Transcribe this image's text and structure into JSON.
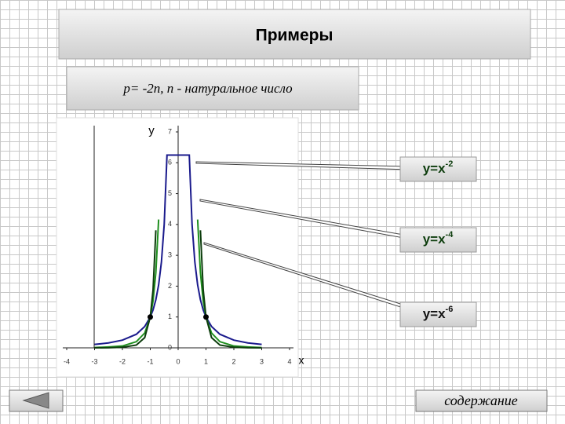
{
  "header": {
    "title": "Примеры"
  },
  "subtitle": "p= -2n, n - натуральное число",
  "chart_data": {
    "type": "line",
    "xlabel": "x",
    "ylabel": "y",
    "xlim": [
      -4,
      4
    ],
    "ylim": [
      0,
      7
    ],
    "xticks": [
      -4,
      -3,
      -2,
      -1,
      0,
      1,
      2,
      3,
      4
    ],
    "yticks": [
      0,
      1,
      2,
      3,
      4,
      5,
      6,
      7
    ],
    "x": [
      -3,
      -2.5,
      -2,
      -1.5,
      -1.2,
      -1,
      -0.9,
      -0.8,
      -0.7,
      -0.6,
      -0.5,
      -0.4,
      0.4,
      0.5,
      0.6,
      0.7,
      0.8,
      0.9,
      1,
      1.2,
      1.5,
      2,
      2.5,
      3
    ],
    "series": [
      {
        "label": {
          "base": "y=x",
          "sup": "-2"
        },
        "color": "#1a1a8c",
        "values": [
          0.11,
          0.16,
          0.25,
          0.44,
          0.69,
          1,
          1.23,
          1.56,
          2.04,
          2.78,
          4,
          6.25,
          6.25,
          4,
          2.78,
          2.04,
          1.56,
          1.23,
          1,
          0.69,
          0.44,
          0.25,
          0.16,
          0.11
        ]
      },
      {
        "label": {
          "base": "y=x",
          "sup": "-4"
        },
        "color": "#1f8f1f",
        "values": [
          0.01,
          0.03,
          0.06,
          0.2,
          0.48,
          1,
          1.52,
          2.44,
          4.16,
          null,
          null,
          null,
          null,
          null,
          null,
          4.16,
          2.44,
          1.52,
          1,
          0.48,
          0.2,
          0.06,
          0.03,
          0.01
        ]
      },
      {
        "label": {
          "base": "y=x",
          "sup": "-6"
        },
        "color": "#0d3d0d",
        "values": [
          0,
          0.004,
          0.02,
          0.09,
          0.33,
          1,
          1.88,
          3.81,
          null,
          null,
          null,
          null,
          null,
          null,
          null,
          null,
          3.81,
          1.88,
          1,
          0.33,
          0.09,
          0.02,
          0.004,
          0
        ]
      }
    ],
    "markers": [
      {
        "x": -1,
        "y": 1
      },
      {
        "x": 1,
        "y": 1
      }
    ]
  },
  "buttons": {
    "contents": "содержание"
  }
}
